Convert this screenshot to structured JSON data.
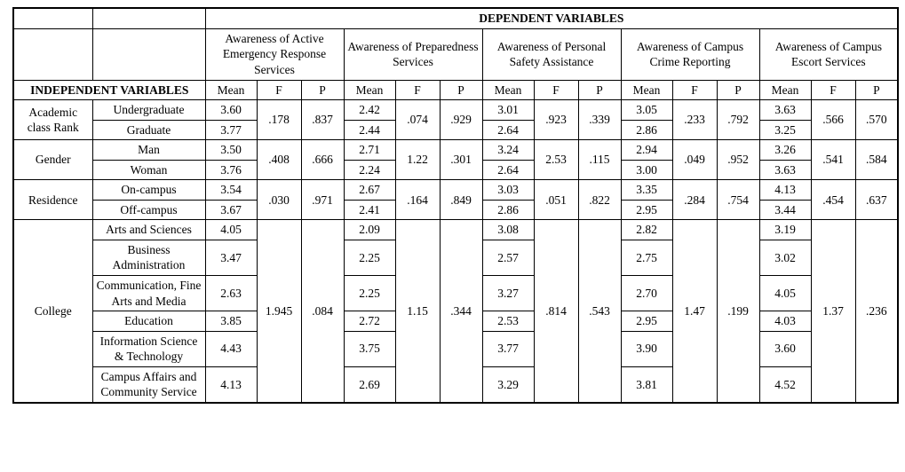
{
  "page": {
    "background_color": "#ffffff",
    "border_color": "#000000",
    "text_color": "#000000"
  },
  "table": {
    "dependent_variables_label": "DEPENDENT VARIABLES",
    "independent_variables_label": "INDEPENDENT VARIABLES",
    "dependent_groups": [
      "Awareness of Active Emergency Response Services",
      "Awareness of Preparedness Services",
      "Awareness of Personal Safety Assistance",
      "Awareness of Campus Crime Reporting",
      "Awareness of Campus Escort Services"
    ],
    "stat_headers": [
      "Mean",
      "F",
      "P"
    ],
    "rows": [
      {
        "category": "Academic class Rank",
        "levels": [
          "Undergraduate",
          "Graduate"
        ],
        "means": [
          [
            "3.60",
            "3.77"
          ],
          [
            "2.42",
            "2.44"
          ],
          [
            "3.01",
            "2.64"
          ],
          [
            "3.05",
            "2.86"
          ],
          [
            "3.63",
            "3.25"
          ]
        ],
        "f": [
          ".178",
          ".074",
          ".923",
          ".233",
          ".566"
        ],
        "p": [
          ".837",
          ".929",
          ".339",
          ".792",
          ".570"
        ]
      },
      {
        "category": "Gender",
        "levels": [
          "Man",
          "Woman"
        ],
        "means": [
          [
            "3.50",
            "3.76"
          ],
          [
            "2.71",
            "2.24"
          ],
          [
            "3.24",
            "2.64"
          ],
          [
            "2.94",
            "3.00"
          ],
          [
            "3.26",
            "3.63"
          ]
        ],
        "f": [
          ".408",
          "1.22",
          "2.53",
          ".049",
          ".541"
        ],
        "p": [
          ".666",
          ".301",
          ".115",
          ".952",
          ".584"
        ]
      },
      {
        "category": "Residence",
        "levels": [
          "On-campus",
          "Off-campus"
        ],
        "means": [
          [
            "3.54",
            "3.67"
          ],
          [
            "2.67",
            "2.41"
          ],
          [
            "3.03",
            "2.86"
          ],
          [
            "3.35",
            "2.95"
          ],
          [
            "4.13",
            "3.44"
          ]
        ],
        "f": [
          ".030",
          ".164",
          ".051",
          ".284",
          ".454"
        ],
        "p": [
          ".971",
          ".849",
          ".822",
          ".754",
          ".637"
        ]
      },
      {
        "category": "College",
        "levels": [
          "Arts and Sciences",
          "Business Administration",
          "Communication, Fine Arts and Media",
          "Education",
          "Information Science & Technology",
          "Campus Affairs and Community Service"
        ],
        "means": [
          [
            "4.05",
            "3.47",
            "2.63",
            "3.85",
            "4.43",
            "4.13"
          ],
          [
            "2.09",
            "2.25",
            "2.25",
            "2.72",
            "3.75",
            "2.69"
          ],
          [
            "3.08",
            "2.57",
            "3.27",
            "2.53",
            "3.77",
            "3.29"
          ],
          [
            "2.82",
            "2.75",
            "2.70",
            "2.95",
            "3.90",
            "3.81"
          ],
          [
            "3.19",
            "3.02",
            "4.05",
            "4.03",
            "3.60",
            "4.52"
          ]
        ],
        "f": [
          "1.945",
          "1.15",
          ".814",
          "1.47",
          "1.37"
        ],
        "p": [
          ".084",
          ".344",
          ".543",
          ".199",
          ".236"
        ]
      }
    ]
  }
}
